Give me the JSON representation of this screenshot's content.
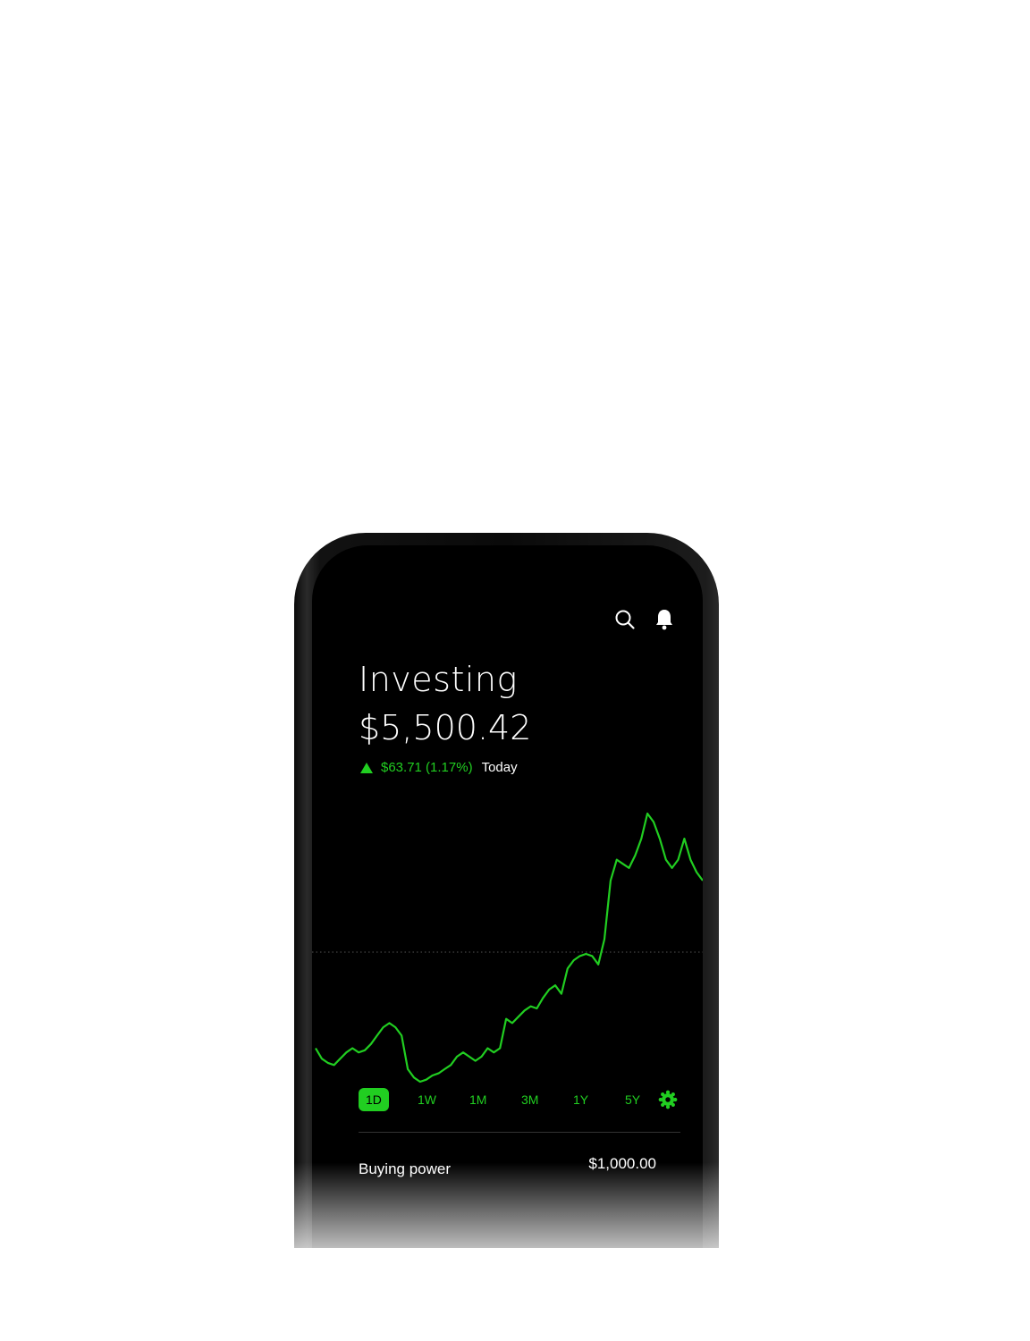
{
  "header": {
    "icons": [
      "search-icon",
      "bell-icon"
    ]
  },
  "portfolio": {
    "title": "Investing",
    "balance": "$5,500.42",
    "change": "$63.71 (1.17%)",
    "period": "Today",
    "change_direction": "up"
  },
  "colors": {
    "accent": "#21ce21",
    "background": "#000000",
    "text": "#ffffff"
  },
  "ranges": {
    "items": [
      "1D",
      "1W",
      "1M",
      "3M",
      "1Y",
      "5Y"
    ],
    "active": "1D",
    "settings_icon": "gear-icon"
  },
  "buying_power": {
    "label": "Buying power",
    "value": "$1,000.00"
  },
  "chart_data": {
    "type": "line",
    "series": [
      {
        "values": [
          60,
          55,
          53,
          52,
          55,
          58,
          60,
          58,
          59,
          62,
          66,
          70,
          72,
          70,
          66,
          50,
          46,
          44,
          45,
          47,
          48,
          50,
          52,
          56,
          58,
          56,
          54,
          56,
          60,
          58,
          60,
          74,
          72,
          75,
          78,
          80,
          79,
          84,
          88,
          90,
          86,
          98,
          102,
          104,
          105,
          104,
          100,
          112,
          140,
          150,
          148,
          146,
          152,
          160,
          172,
          168,
          160,
          150,
          146,
          150,
          160,
          150,
          144,
          140
        ]
      }
    ],
    "reference_line": "dotted previous close",
    "grid": false
  }
}
